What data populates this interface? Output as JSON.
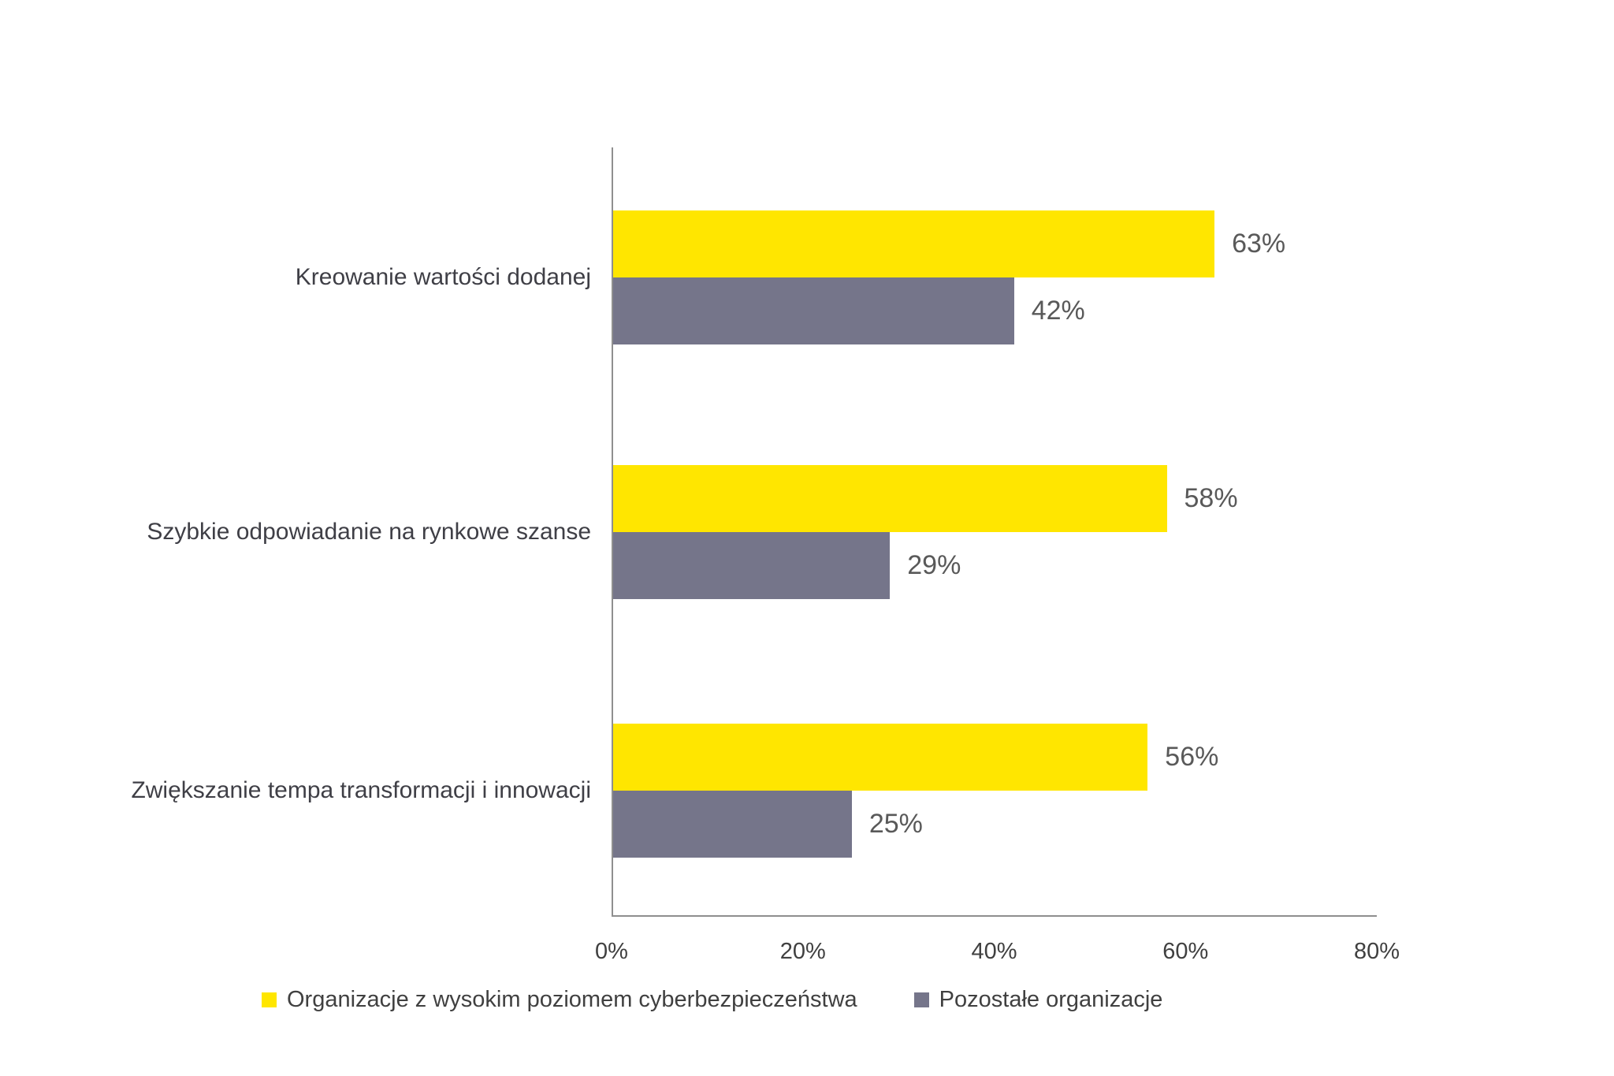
{
  "chart_data": {
    "type": "bar",
    "orientation": "horizontal",
    "categories": [
      "Kreowanie wartości dodanej",
      "Szybkie odpowiadanie na rynkowe szanse",
      "Zwiększanie tempa transformacji i innowacji"
    ],
    "series": [
      {
        "name": "Organizacje z wysokim poziomem cyberbezpieczeństwa",
        "color": "#FFE600",
        "values": [
          63,
          58,
          56
        ]
      },
      {
        "name": "Pozostałe organizacje",
        "color": "#75758A",
        "values": [
          42,
          29,
          25
        ]
      }
    ],
    "value_suffix": "%",
    "xlim": [
      0,
      80
    ],
    "x_ticks": [
      "0%",
      "20%",
      "40%",
      "60%",
      "80%"
    ],
    "x_tick_values": [
      0,
      20,
      40,
      60,
      80
    ],
    "title": "",
    "xlabel": "",
    "ylabel": "",
    "grid": false,
    "legend_position": "bottom",
    "legend": [
      "Organizacje z wysokim poziomem cyberbezpieczeństwa",
      "Pozostałe organizacje"
    ]
  }
}
